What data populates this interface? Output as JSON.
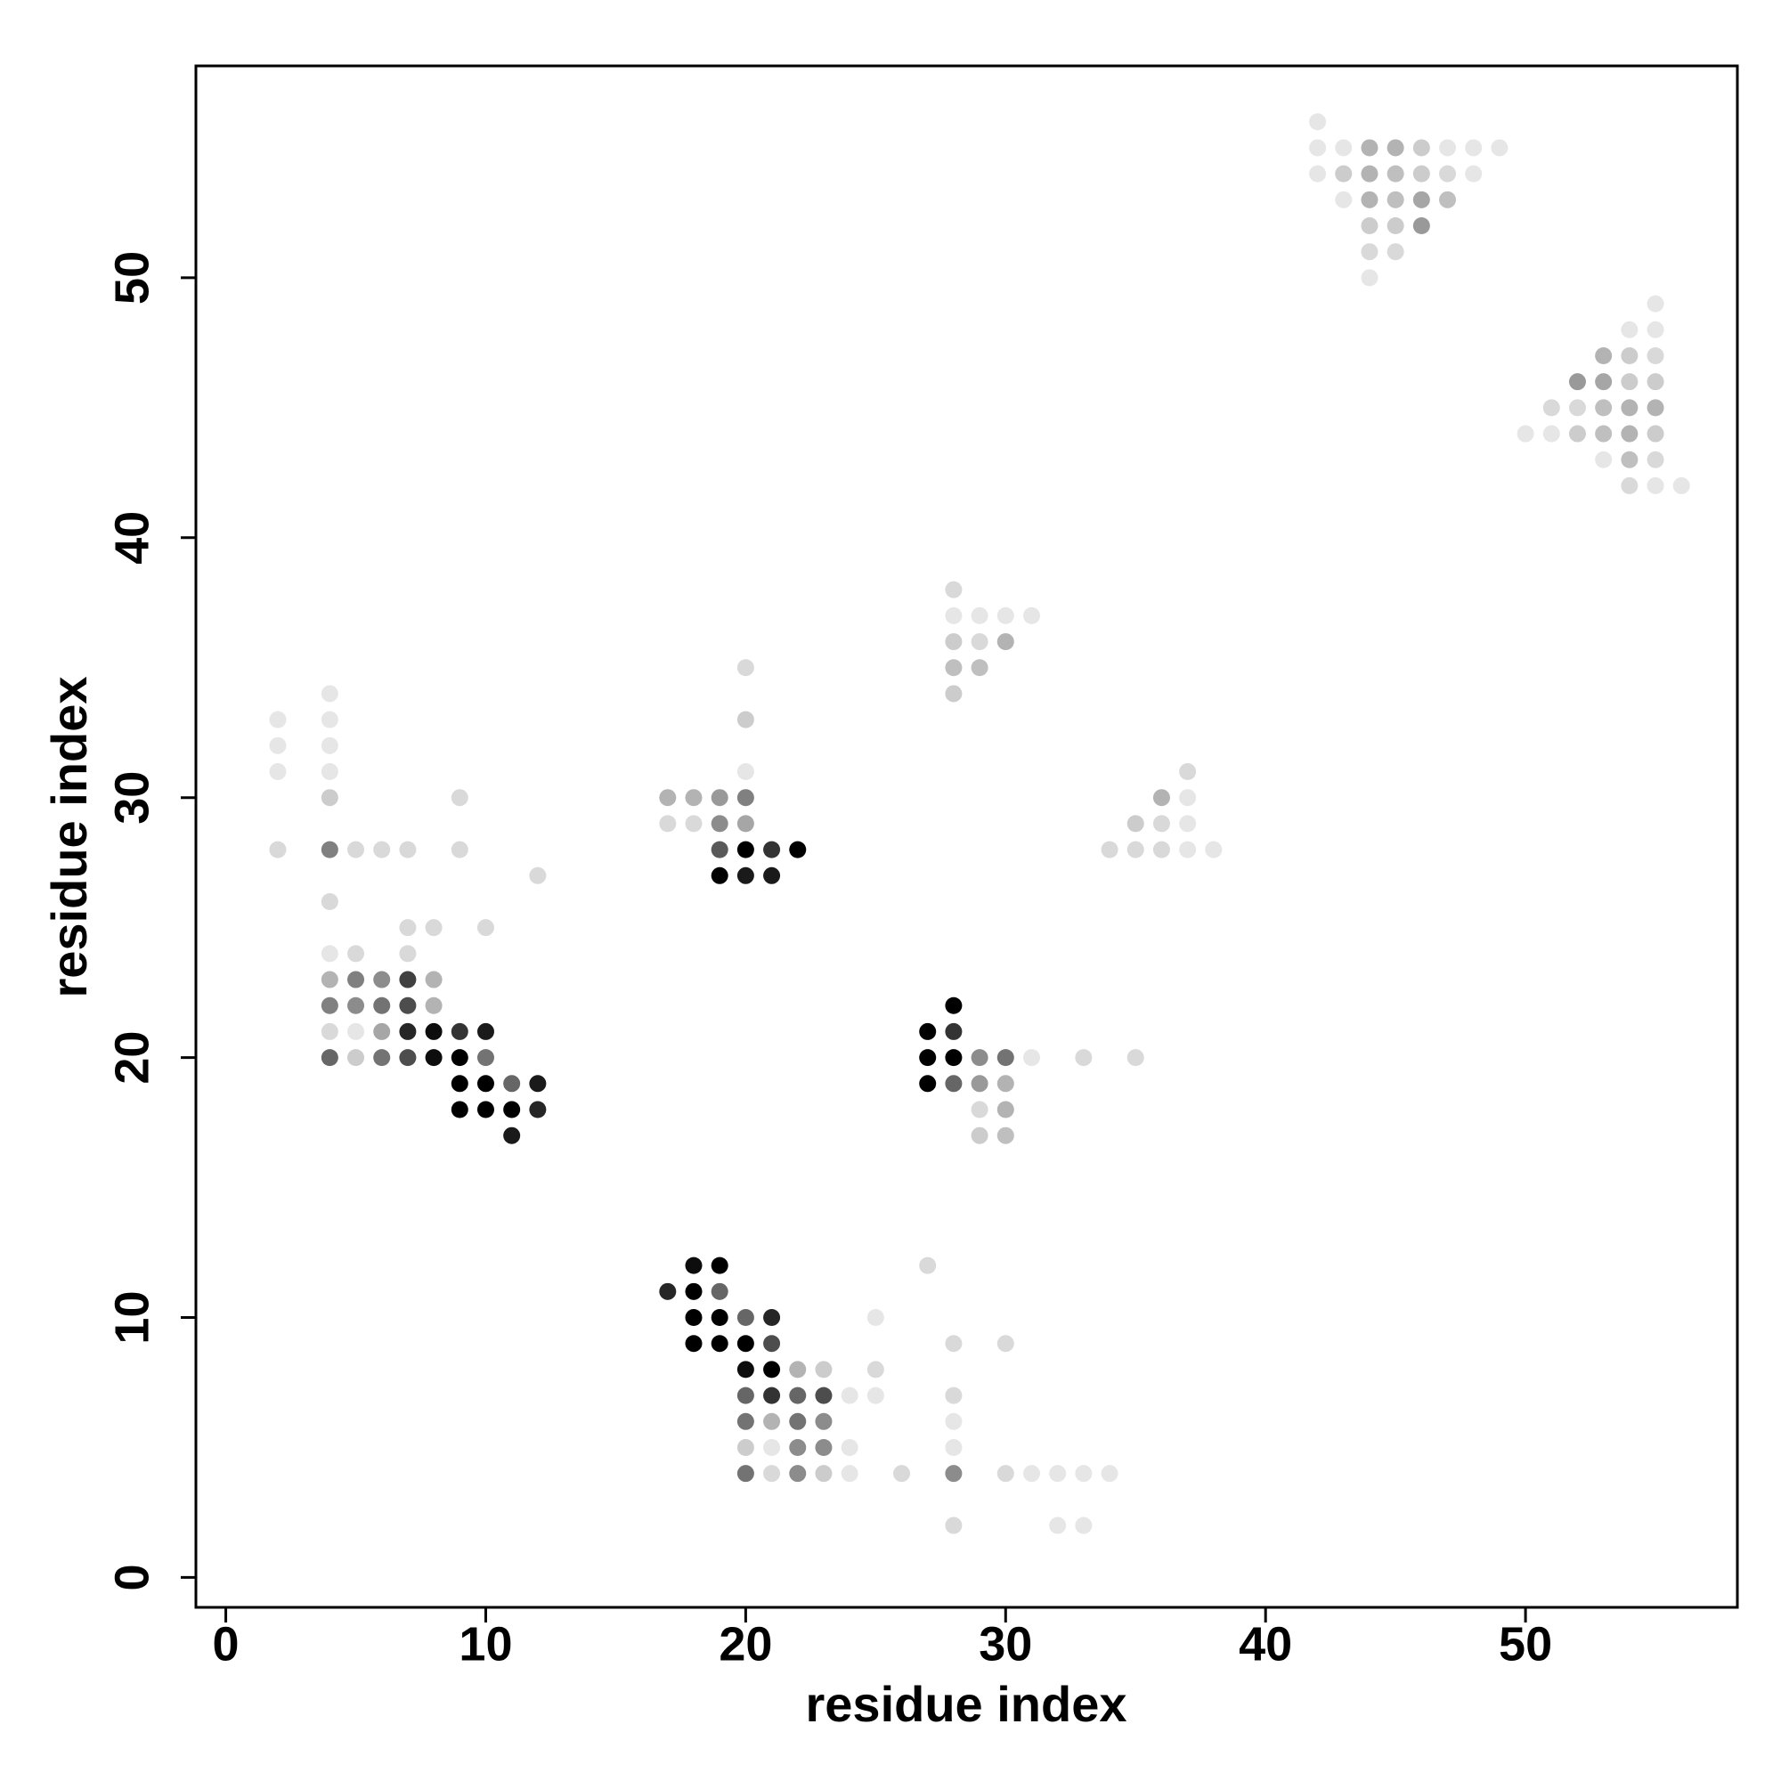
{
  "chart_data": {
    "type": "scatter",
    "x_label": "residue index",
    "y_label": "residue index",
    "xlim": [
      -1.15,
      58.15
    ],
    "ylim": [
      -1.15,
      58.15
    ],
    "xticks": [
      0,
      10,
      20,
      30,
      40,
      50
    ],
    "yticks": [
      0,
      10,
      20,
      30,
      40,
      50
    ],
    "color": "#000000",
    "x": [
      42,
      42,
      43,
      44,
      45,
      46,
      47,
      48,
      49,
      42,
      43,
      44,
      45,
      46,
      47,
      48,
      43,
      44,
      45,
      46,
      47,
      44,
      45,
      46,
      44,
      45,
      44,
      55,
      54,
      55,
      53,
      54,
      55,
      52,
      53,
      54,
      55,
      51,
      52,
      53,
      54,
      55,
      50,
      51,
      52,
      53,
      54,
      55,
      53,
      54,
      55,
      54,
      55,
      56,
      28,
      28,
      29,
      30,
      31,
      28,
      29,
      30,
      28,
      29,
      28,
      37,
      36,
      37,
      35,
      36,
      37,
      34,
      35,
      36,
      37,
      38,
      2,
      4,
      4,
      2,
      4,
      2,
      4,
      4,
      9,
      2,
      4,
      5,
      6,
      7,
      9,
      12,
      4,
      7,
      8,
      10,
      4,
      5,
      7,
      4,
      5,
      6,
      7,
      8,
      4,
      5,
      6,
      7,
      8,
      4,
      5,
      6,
      7,
      8,
      9,
      10,
      4,
      5,
      6,
      7,
      8,
      9,
      10,
      9,
      10,
      11,
      12,
      9,
      10,
      11,
      12,
      11,
      20,
      20,
      20,
      17,
      18,
      19,
      20,
      17,
      18,
      19,
      20,
      19,
      20,
      21,
      22,
      19,
      20,
      21,
      28,
      27,
      28,
      27,
      28,
      29,
      30,
      31,
      33,
      35,
      27,
      28,
      29,
      30,
      29,
      30,
      29,
      30,
      18,
      19,
      27,
      17,
      18,
      19,
      18,
      19,
      20,
      21,
      25,
      18,
      19,
      20,
      21,
      28,
      30,
      20,
      21,
      22,
      23,
      25,
      20,
      21,
      22,
      23,
      24,
      25,
      28,
      20,
      21,
      22,
      23,
      28,
      20,
      21,
      22,
      23,
      24,
      28,
      20,
      21,
      22,
      23,
      24,
      26,
      28,
      30,
      31,
      32,
      33,
      34,
      28,
      32,
      33
    ],
    "y": [
      56,
      55,
      55,
      55,
      55,
      55,
      55,
      55,
      55,
      54,
      54,
      54,
      54,
      54,
      54,
      54,
      53,
      53,
      53,
      53,
      53,
      52,
      52,
      52,
      51,
      51,
      50,
      49,
      48,
      48,
      47,
      47,
      47,
      46,
      46,
      46,
      46,
      45,
      45,
      45,
      45,
      45,
      44,
      44,
      44,
      44,
      44,
      44,
      43,
      43,
      43,
      42,
      42,
      42,
      38,
      37,
      37,
      37,
      37,
      36,
      36,
      36,
      35,
      35,
      34,
      31,
      30,
      30,
      29,
      29,
      29,
      28,
      28,
      28,
      28,
      28,
      33,
      33,
      34,
      32,
      32,
      31,
      31,
      30,
      30,
      28,
      28,
      28,
      28,
      28,
      28,
      27,
      26,
      25,
      25,
      25,
      24,
      24,
      24,
      23,
      23,
      23,
      23,
      23,
      22,
      22,
      22,
      22,
      22,
      21,
      21,
      21,
      21,
      21,
      21,
      21,
      20,
      20,
      20,
      20,
      20,
      20,
      20,
      19,
      19,
      19,
      19,
      18,
      18,
      18,
      18,
      17,
      35,
      33,
      31,
      30,
      30,
      30,
      30,
      29,
      29,
      29,
      29,
      28,
      28,
      28,
      28,
      27,
      27,
      27,
      22,
      21,
      21,
      20,
      20,
      20,
      20,
      20,
      20,
      20,
      19,
      19,
      19,
      19,
      18,
      18,
      17,
      17,
      12,
      12,
      12,
      11,
      11,
      11,
      10,
      10,
      10,
      10,
      10,
      9,
      9,
      9,
      9,
      9,
      9,
      8,
      8,
      8,
      8,
      8,
      7,
      7,
      7,
      7,
      7,
      7,
      7,
      6,
      6,
      6,
      6,
      6,
      5,
      5,
      5,
      5,
      5,
      5,
      4,
      4,
      4,
      4,
      4,
      4,
      4,
      4,
      4,
      4,
      4,
      4,
      2,
      2,
      2
    ],
    "weights": [
      0.1,
      0.1,
      0.1,
      0.3,
      0.3,
      0.2,
      0.1,
      0.1,
      0.1,
      0.1,
      0.2,
      0.3,
      0.25,
      0.2,
      0.15,
      0.1,
      0.1,
      0.3,
      0.25,
      0.35,
      0.25,
      0.2,
      0.2,
      0.4,
      0.15,
      0.15,
      0.1,
      0.1,
      0.1,
      0.1,
      0.3,
      0.2,
      0.15,
      0.4,
      0.35,
      0.2,
      0.2,
      0.15,
      0.15,
      0.25,
      0.3,
      0.3,
      0.1,
      0.1,
      0.2,
      0.25,
      0.3,
      0.2,
      0.1,
      0.25,
      0.15,
      0.15,
      0.1,
      0.1,
      0.15,
      0.1,
      0.1,
      0.1,
      0.1,
      0.2,
      0.15,
      0.3,
      0.25,
      0.25,
      0.2,
      0.15,
      0.3,
      0.1,
      0.2,
      0.15,
      0.1,
      0.15,
      0.15,
      0.15,
      0.1,
      0.1,
      0.1,
      0.1,
      0.1,
      0.1,
      0.1,
      0.1,
      0.1,
      0.2,
      0.15,
      0.15,
      0.5,
      0.15,
      0.15,
      0.15,
      0.15,
      0.15,
      0.15,
      0.15,
      0.15,
      0.15,
      0.1,
      0.15,
      0.15,
      0.3,
      0.5,
      0.45,
      0.75,
      0.3,
      0.5,
      0.45,
      0.55,
      0.7,
      0.3,
      0.15,
      0.1,
      0.35,
      0.85,
      0.95,
      0.8,
      0.9,
      0.6,
      0.2,
      0.55,
      0.7,
      0.95,
      1,
      0.55,
      1,
      1,
      0.6,
      0.9,
      1,
      1,
      1,
      0.85,
      0.9,
      0.15,
      0.2,
      0.1,
      0.3,
      0.3,
      0.4,
      0.5,
      0.15,
      0.15,
      0.45,
      0.35,
      0.65,
      1,
      0.8,
      1,
      1,
      0.9,
      0.9,
      1,
      1,
      0.8,
      1,
      1,
      0.45,
      0.55,
      0.1,
      0.15,
      0.15,
      1,
      0.6,
      0.4,
      0.3,
      0.15,
      0.3,
      0.2,
      0.25,
      0.95,
      1,
      0.15,
      0.85,
      1,
      0.6,
      1,
      1,
      0.6,
      0.85,
      0.1,
      1,
      1,
      1,
      0.7,
      0.15,
      0.15,
      0.95,
      1,
      0.3,
      0.2,
      0.15,
      0.6,
      0.8,
      0.6,
      0.7,
      0.1,
      0.1,
      0.15,
      0.55,
      0.3,
      0.55,
      0.45,
      0.1,
      0.2,
      0.1,
      0.45,
      0.45,
      0.1,
      0.1,
      0.55,
      0.15,
      0.45,
      0.2,
      0.1,
      0.15,
      0.45,
      0.15,
      0.1,
      0.1,
      0.1,
      0.1,
      0.15,
      0.1,
      0.1
    ]
  }
}
